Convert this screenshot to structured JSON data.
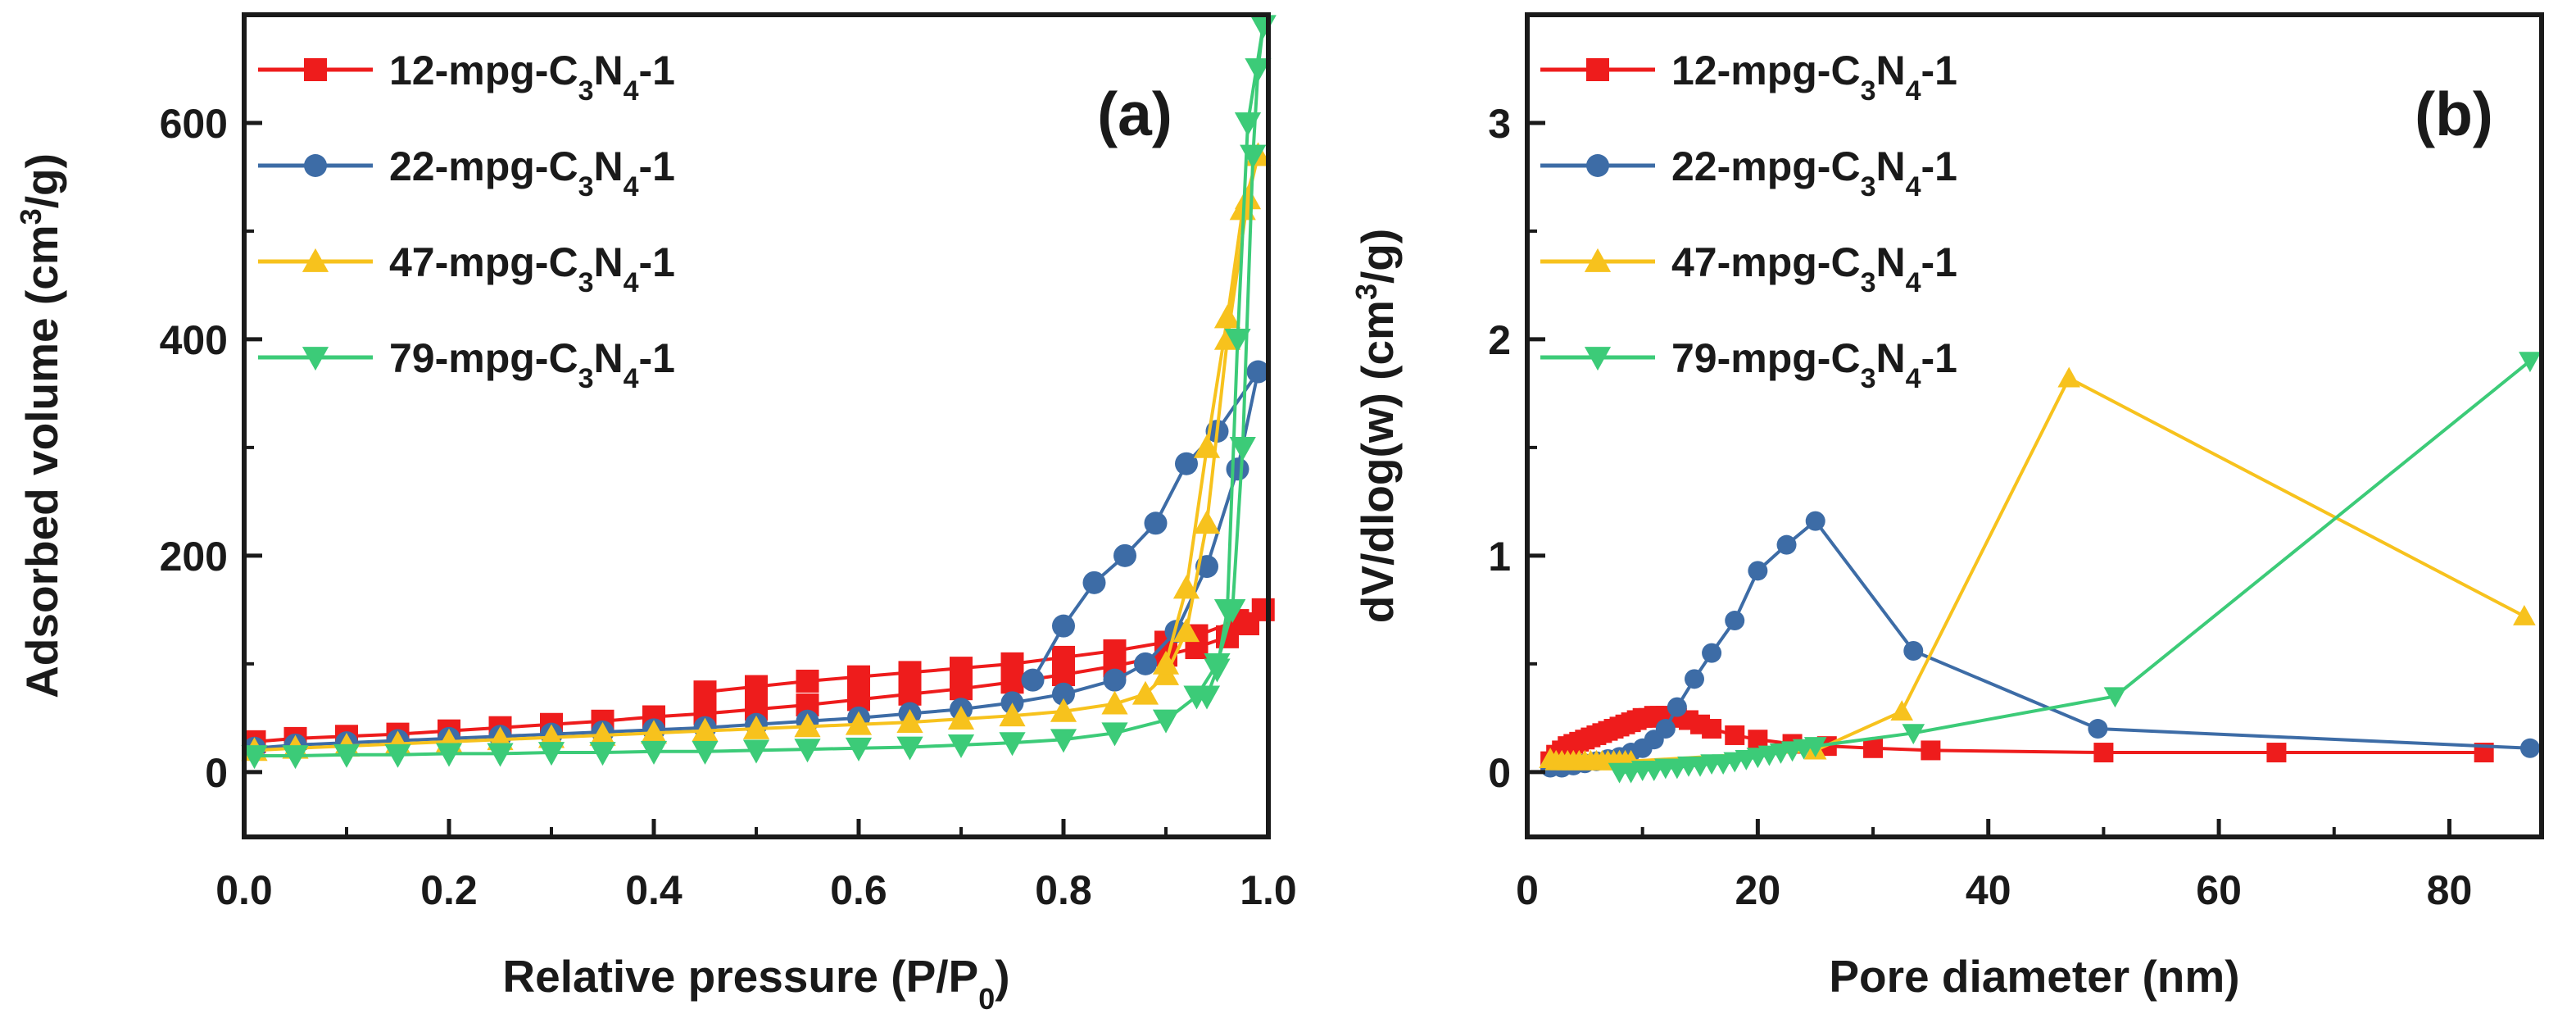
{
  "colors": {
    "red": "#ee1c1c",
    "blue": "#3d6ca6",
    "yellow": "#f7c21d",
    "green": "#3ccb78",
    "axis": "#1a1a1a"
  },
  "chart_data": [
    {
      "type": "line",
      "panel_label": "(a)",
      "xlabel_main": "Relative pressure (P/P",
      "xlabel_sub": "0",
      "xlabel_end": ")",
      "ylabel_main": "Adsorbed volume (cm",
      "ylabel_sup": "3",
      "ylabel_end": "/g)",
      "xlim": [
        0.0,
        1.0
      ],
      "ylim": [
        -60,
        700
      ],
      "x_ticks": [
        0.0,
        0.2,
        0.4,
        0.6,
        0.8,
        1.0
      ],
      "x_tick_labels": [
        "0.0",
        "0.2",
        "0.4",
        "0.6",
        "0.8",
        "1.0"
      ],
      "y_ticks": [
        0,
        200,
        400,
        600
      ],
      "y_tick_labels": [
        "0",
        "200",
        "400",
        "600"
      ],
      "legend_position": "top-left",
      "series": [
        {
          "name": "12-mpg-C3N4-1",
          "label_parts": [
            "12-mpg-C",
            "3",
            "N",
            "4",
            "-1"
          ],
          "color": "red",
          "marker": "square",
          "x": [
            0.01,
            0.05,
            0.1,
            0.15,
            0.2,
            0.25,
            0.3,
            0.35,
            0.4,
            0.45,
            0.5,
            0.55,
            0.6,
            0.65,
            0.7,
            0.75,
            0.8,
            0.85,
            0.9,
            0.93,
            0.96,
            0.98,
            0.995,
            0.97,
            0.93,
            0.9,
            0.85,
            0.8,
            0.75,
            0.7,
            0.65,
            0.6,
            0.55,
            0.5,
            0.45
          ],
          "y": [
            28,
            31,
            33,
            35,
            38,
            41,
            44,
            47,
            51,
            54,
            58,
            62,
            67,
            72,
            77,
            83,
            90,
            98,
            108,
            115,
            125,
            137,
            150,
            140,
            126,
            120,
            112,
            106,
            100,
            96,
            92,
            88,
            84,
            79,
            74
          ]
        },
        {
          "name": "22-mpg-C3N4-1",
          "label_parts": [
            "22-mpg-C",
            "3",
            "N",
            "4",
            "-1"
          ],
          "color": "blue",
          "marker": "circle",
          "x": [
            0.01,
            0.05,
            0.1,
            0.15,
            0.2,
            0.25,
            0.3,
            0.35,
            0.4,
            0.45,
            0.5,
            0.55,
            0.6,
            0.65,
            0.7,
            0.75,
            0.8,
            0.85,
            0.88,
            0.91,
            0.94,
            0.97,
            0.99,
            0.95,
            0.92,
            0.89,
            0.86,
            0.83,
            0.8,
            0.77
          ],
          "y": [
            22,
            25,
            27,
            29,
            31,
            33,
            35,
            37,
            39,
            41,
            44,
            47,
            50,
            54,
            58,
            64,
            72,
            85,
            100,
            130,
            190,
            280,
            370,
            315,
            285,
            230,
            200,
            175,
            135,
            85
          ]
        },
        {
          "name": "47-mpg-C3N4-1",
          "label_parts": [
            "47-mpg-C",
            "3",
            "N",
            "4",
            "-1"
          ],
          "color": "yellow",
          "marker": "triangle-up",
          "x": [
            0.01,
            0.05,
            0.1,
            0.15,
            0.2,
            0.25,
            0.3,
            0.35,
            0.4,
            0.45,
            0.5,
            0.55,
            0.6,
            0.65,
            0.7,
            0.75,
            0.8,
            0.85,
            0.88,
            0.9,
            0.92,
            0.94,
            0.96,
            0.98,
            0.99,
            0.975,
            0.96,
            0.94,
            0.92,
            0.9
          ],
          "y": [
            20,
            22,
            24,
            26,
            28,
            30,
            32,
            34,
            36,
            38,
            40,
            42,
            44,
            46,
            49,
            52,
            56,
            63,
            72,
            90,
            130,
            230,
            400,
            530,
            570,
            520,
            420,
            300,
            170,
            100
          ]
        },
        {
          "name": "79-mpg-C3N4-1",
          "label_parts": [
            "79-mpg-C",
            "3",
            "N",
            "4",
            "-1"
          ],
          "color": "green",
          "marker": "triangle-down",
          "x": [
            0.01,
            0.05,
            0.1,
            0.15,
            0.2,
            0.25,
            0.3,
            0.35,
            0.4,
            0.45,
            0.5,
            0.55,
            0.6,
            0.65,
            0.7,
            0.75,
            0.8,
            0.85,
            0.9,
            0.93,
            0.95,
            0.965,
            0.975,
            0.985,
            0.99,
            0.995,
            0.98,
            0.97,
            0.96,
            0.95,
            0.94
          ],
          "y": [
            15,
            15,
            16,
            16,
            17,
            17,
            18,
            18,
            19,
            19,
            20,
            21,
            22,
            23,
            25,
            27,
            30,
            36,
            48,
            70,
            100,
            150,
            300,
            570,
            650,
            690,
            600,
            400,
            150,
            95,
            70
          ]
        }
      ]
    },
    {
      "type": "line",
      "panel_label": "(b)",
      "xlabel_main": "Pore diameter (nm)",
      "ylabel_main": "dV/dlog(w) (cm",
      "ylabel_sup": "3",
      "ylabel_end": "/g)",
      "xlim": [
        0,
        88
      ],
      "ylim": [
        -0.3,
        3.5
      ],
      "x_ticks": [
        0,
        20,
        40,
        60,
        80
      ],
      "x_tick_labels": [
        "0",
        "20",
        "40",
        "60",
        "80"
      ],
      "y_ticks": [
        0,
        1,
        2,
        3
      ],
      "y_tick_labels": [
        "0",
        "1",
        "2",
        "3"
      ],
      "legend_position": "top-left",
      "series": [
        {
          "name": "12-mpg-C3N4-1",
          "label_parts": [
            "12-mpg-C",
            "3",
            "N",
            "4",
            "-1"
          ],
          "color": "red",
          "marker": "square",
          "x": [
            2,
            2.5,
            3,
            3.5,
            4,
            4.5,
            5,
            5.5,
            6,
            6.5,
            7,
            7.5,
            8,
            8.5,
            9,
            9.5,
            10,
            10.5,
            11,
            11.5,
            12,
            13,
            14,
            15,
            16,
            18,
            20,
            23,
            26,
            30,
            35,
            50,
            65,
            83
          ],
          "y": [
            0.05,
            0.08,
            0.1,
            0.12,
            0.13,
            0.14,
            0.15,
            0.16,
            0.17,
            0.18,
            0.19,
            0.2,
            0.21,
            0.22,
            0.23,
            0.24,
            0.25,
            0.25,
            0.26,
            0.26,
            0.26,
            0.25,
            0.24,
            0.22,
            0.2,
            0.17,
            0.15,
            0.13,
            0.12,
            0.11,
            0.1,
            0.09,
            0.09,
            0.09
          ]
        },
        {
          "name": "22-mpg-C3N4-1",
          "label_parts": [
            "22-mpg-C",
            "3",
            "N",
            "4",
            "-1"
          ],
          "color": "blue",
          "marker": "circle",
          "x": [
            2,
            3,
            4,
            5,
            6,
            7,
            8,
            9,
            10,
            11,
            12,
            13,
            14.5,
            16,
            18,
            20,
            22.5,
            25,
            33.5,
            49.5,
            87
          ],
          "y": [
            0.02,
            0.02,
            0.03,
            0.04,
            0.05,
            0.06,
            0.07,
            0.09,
            0.11,
            0.15,
            0.2,
            0.3,
            0.43,
            0.55,
            0.7,
            0.93,
            1.05,
            1.16,
            0.56,
            0.2,
            0.11
          ]
        },
        {
          "name": "47-mpg-C3N4-1",
          "label_parts": [
            "47-mpg-C",
            "3",
            "N",
            "4",
            "-1"
          ],
          "color": "yellow",
          "marker": "triangle-up",
          "x": [
            2,
            2.5,
            3,
            3.5,
            4,
            4.5,
            5,
            5.5,
            6,
            6.5,
            7,
            7.5,
            8,
            8.5,
            9,
            25,
            32.5,
            47,
            86.5
          ],
          "y": [
            0.06,
            0.05,
            0.05,
            0.05,
            0.05,
            0.05,
            0.05,
            0.05,
            0.05,
            0.05,
            0.05,
            0.05,
            0.05,
            0.05,
            0.05,
            0.1,
            0.28,
            1.82,
            0.72
          ]
        },
        {
          "name": "79-mpg-C3N4-1",
          "label_parts": [
            "79-mpg-C",
            "3",
            "N",
            "4",
            "-1"
          ],
          "color": "green",
          "marker": "triangle-down",
          "x": [
            8,
            9,
            10,
            11,
            12,
            13,
            14,
            15,
            16,
            17,
            18,
            19,
            20,
            21,
            22,
            23,
            24,
            25,
            33.5,
            51,
            87
          ],
          "y": [
            0.0,
            0.0,
            0.01,
            0.01,
            0.02,
            0.02,
            0.03,
            0.03,
            0.04,
            0.04,
            0.05,
            0.06,
            0.07,
            0.08,
            0.09,
            0.1,
            0.11,
            0.12,
            0.18,
            0.35,
            1.9
          ]
        }
      ]
    }
  ]
}
